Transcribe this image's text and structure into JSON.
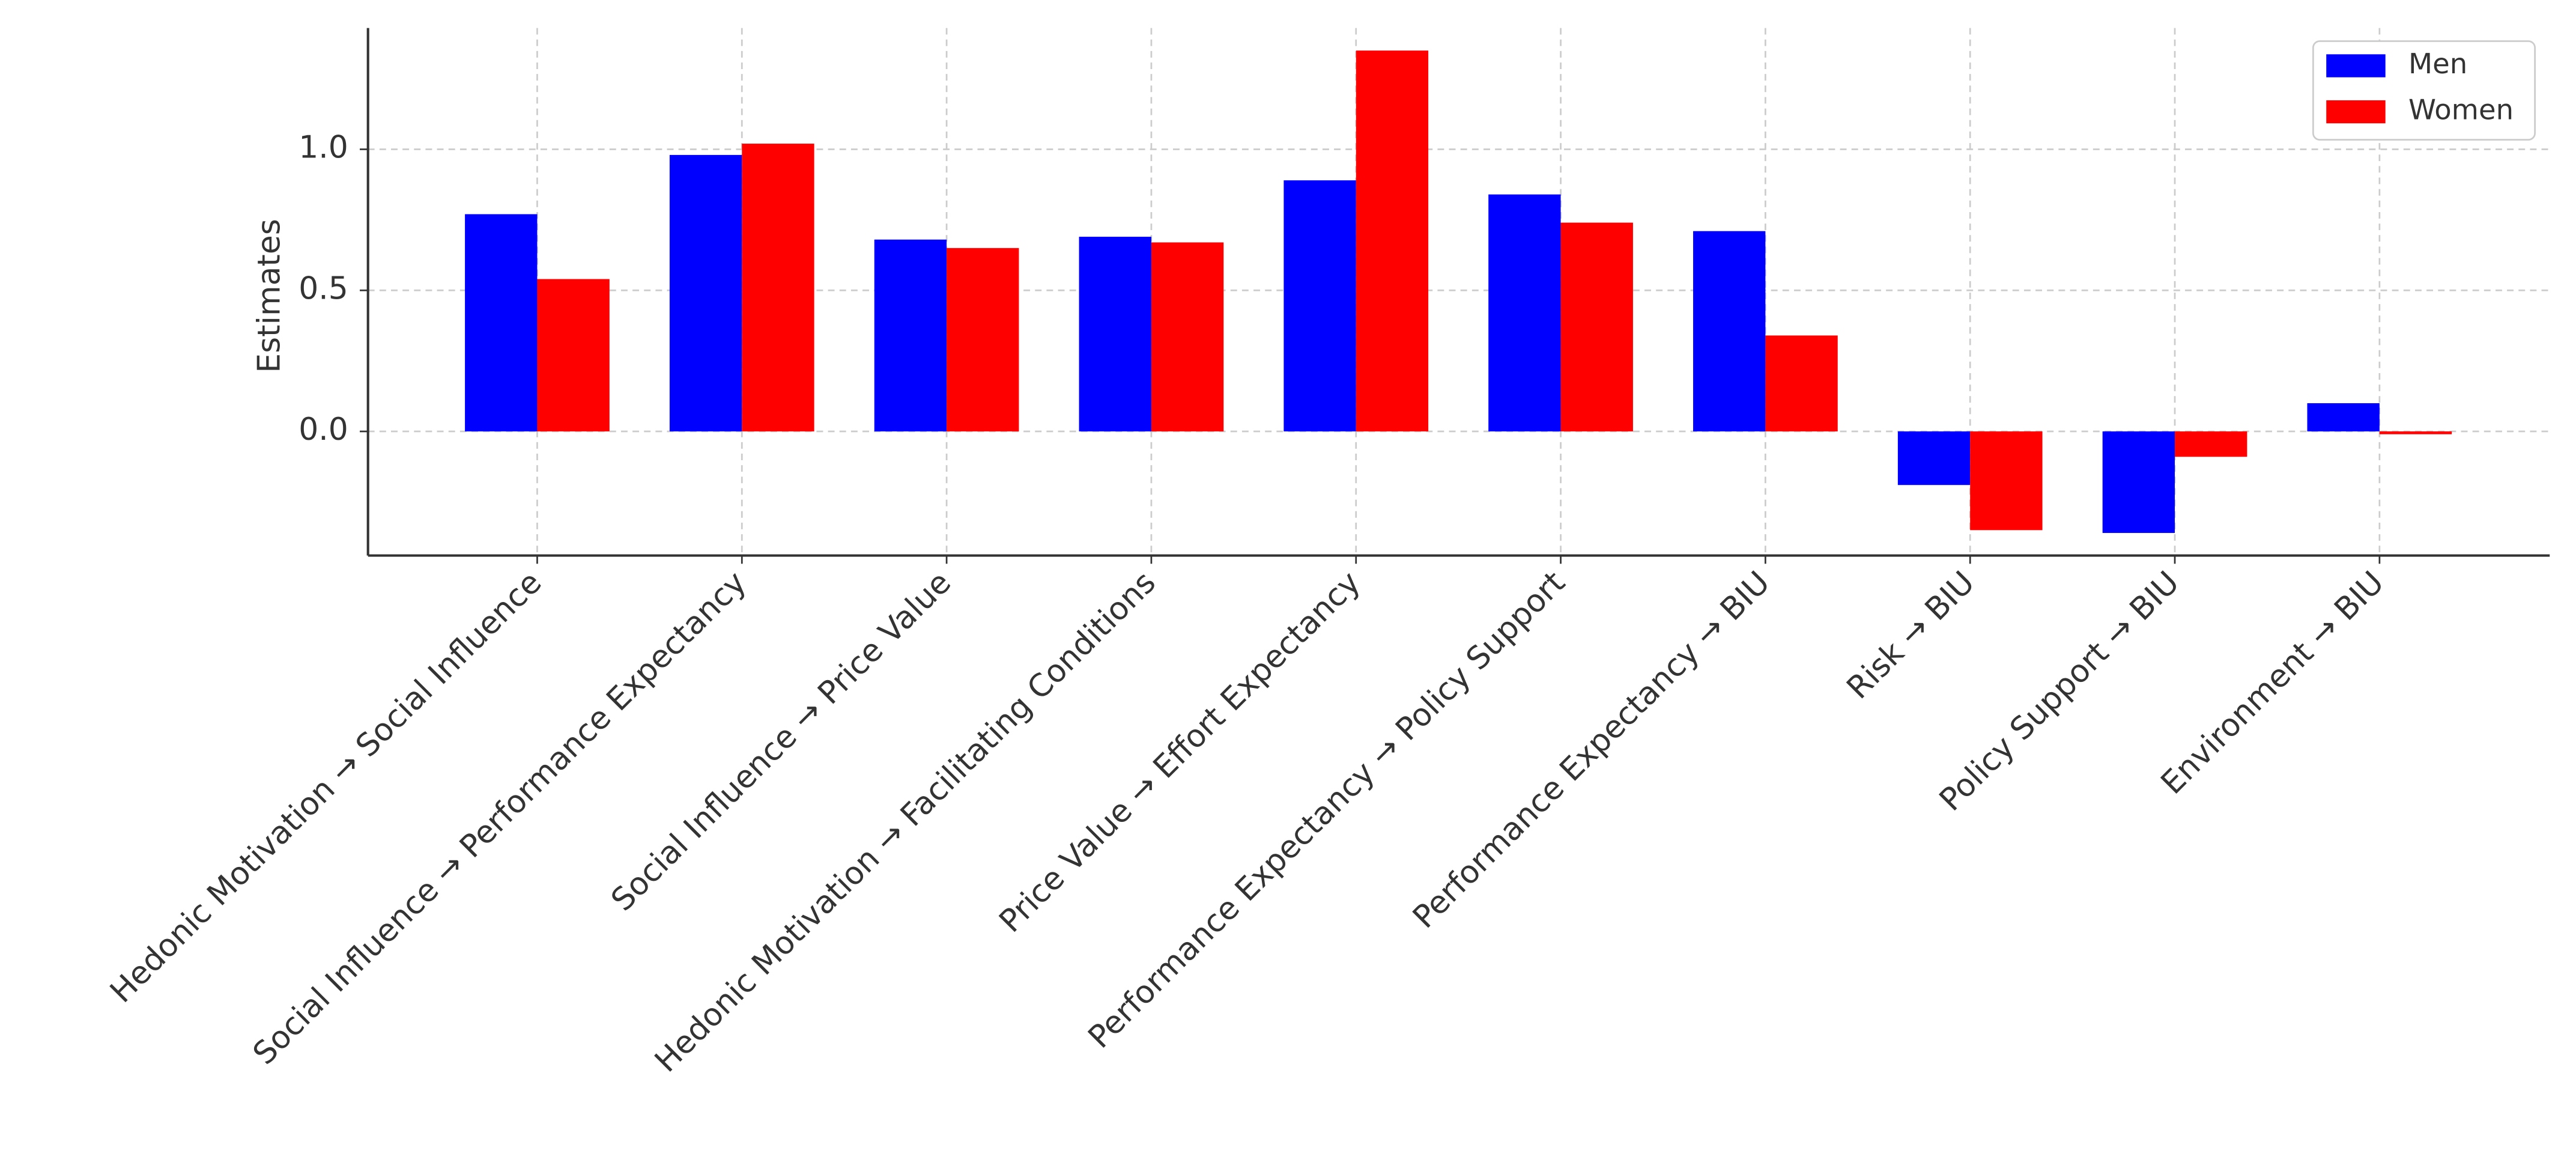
{
  "chart_data": {
    "type": "bar",
    "y_label": "Estimates",
    "categories": [
      "Hedonic Motivation → Social Influence",
      "Social Influence → Performance Expectancy",
      "Social Influence → Price Value",
      "Hedonic Motivation → Facilitating Conditions",
      "Price Value → Effort Expectancy",
      "Performance Expectancy → Policy Support",
      "Performance Expectancy → BIU",
      "Risk → BIU",
      "Policy Support → BIU",
      "Environment → BIU"
    ],
    "series": [
      {
        "name": "Men",
        "color": "#0000ff",
        "values": [
          0.77,
          0.98,
          0.68,
          0.69,
          0.89,
          0.84,
          0.71,
          -0.19,
          -0.36,
          0.1
        ]
      },
      {
        "name": "Women",
        "color": "#ff0000",
        "values": [
          0.54,
          1.02,
          0.65,
          0.67,
          1.35,
          0.74,
          0.34,
          -0.35,
          -0.09,
          -0.01
        ]
      }
    ],
    "ylim": [
      -0.44,
      1.43
    ],
    "yticks": [
      {
        "value": 0,
        "label": "0.0"
      },
      {
        "value": 0.5,
        "label": "0.5"
      },
      {
        "value": 1,
        "label": "1.0"
      }
    ],
    "grid": true,
    "legend": "upper right"
  }
}
